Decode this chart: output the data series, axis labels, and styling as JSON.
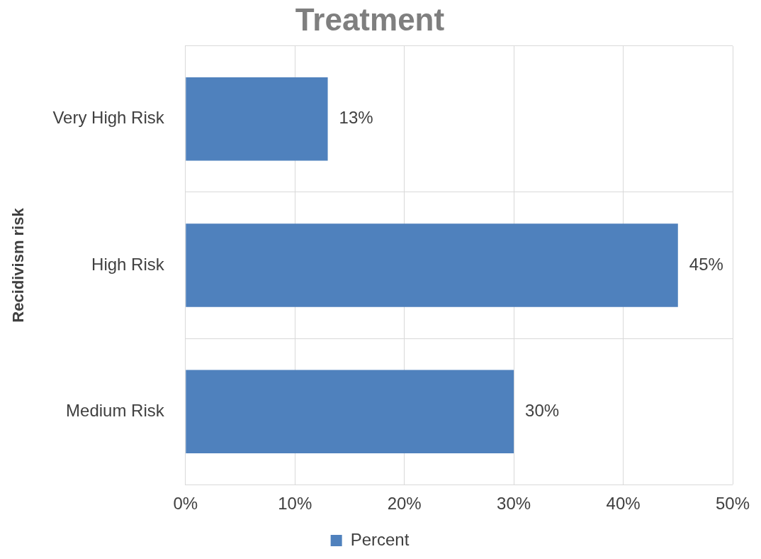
{
  "chart_data": {
    "type": "bar",
    "orientation": "horizontal",
    "title": "Treatment",
    "ylabel": "Recidivism risk",
    "categories": [
      "Very High Risk",
      "High Risk",
      "Medium Risk"
    ],
    "series": [
      {
        "name": "Percent",
        "color": "#4f81bd",
        "values": [
          13,
          45,
          30
        ],
        "value_labels": [
          "13%",
          "45%",
          "30%"
        ]
      }
    ],
    "xlim": [
      0,
      50
    ],
    "xticks": [
      {
        "value": 0,
        "label": "0%"
      },
      {
        "value": 10,
        "label": "10%"
      },
      {
        "value": 20,
        "label": "20%"
      },
      {
        "value": 30,
        "label": "30%"
      },
      {
        "value": 40,
        "label": "40%"
      },
      {
        "value": 50,
        "label": "50%"
      }
    ],
    "grid": true,
    "legend": "bottom"
  }
}
